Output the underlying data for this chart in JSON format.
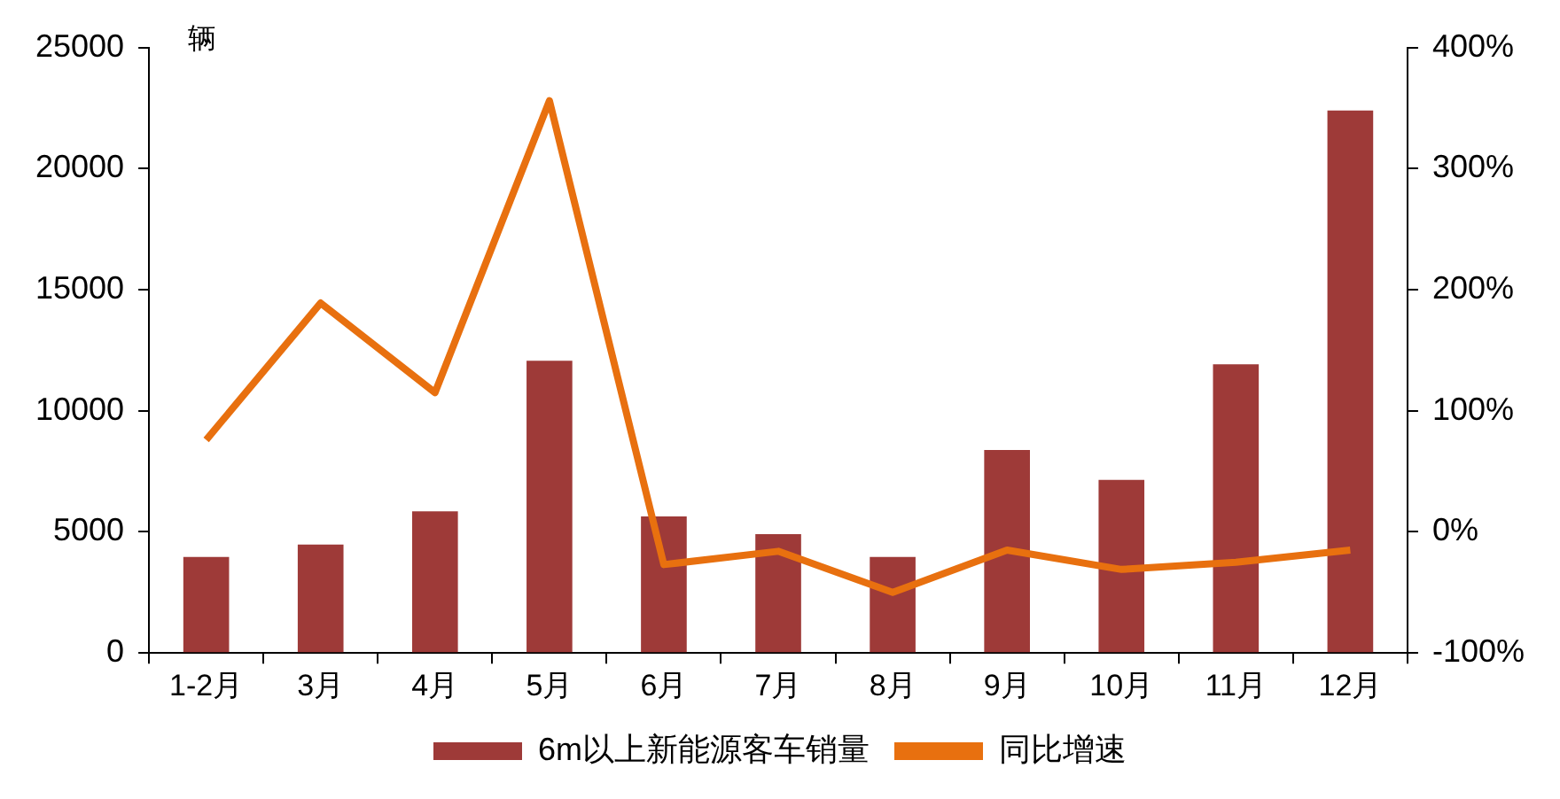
{
  "chart_data": {
    "type": "bar",
    "ylabel": "辆",
    "categories": [
      "1-2月",
      "3月",
      "4月",
      "5月",
      "6月",
      "7月",
      "8月",
      "9月",
      "10月",
      "11月",
      "12月"
    ],
    "series": [
      {
        "name": "6m以上新能源客车销量",
        "color": "#9e3a38",
        "values": [
          3970,
          4480,
          5850,
          12070,
          5640,
          4910,
          3970,
          8380,
          7150,
          11920,
          22400
        ]
      },
      {
        "name": "同比增速",
        "type": "line",
        "axis": "y2",
        "color": "#e8700f",
        "marker": "none",
        "values": [
          76,
          189,
          115,
          356,
          -27,
          -16,
          -50,
          -15,
          -31,
          -25,
          -15
        ]
      }
    ],
    "ylim": [
      0,
      25000
    ],
    "yticks": [
      0,
      5000,
      10000,
      15000,
      20000,
      25000
    ],
    "y2lim": [
      -100,
      400
    ],
    "y2ticks": [
      {
        "value": -100,
        "label": "-100%"
      },
      {
        "value": 0,
        "label": "0%"
      },
      {
        "value": 100,
        "label": "100%"
      },
      {
        "value": 200,
        "label": "200%"
      },
      {
        "value": 300,
        "label": "300%"
      },
      {
        "value": 400,
        "label": "400%"
      }
    ],
    "grid": false,
    "legend": "bottom"
  }
}
